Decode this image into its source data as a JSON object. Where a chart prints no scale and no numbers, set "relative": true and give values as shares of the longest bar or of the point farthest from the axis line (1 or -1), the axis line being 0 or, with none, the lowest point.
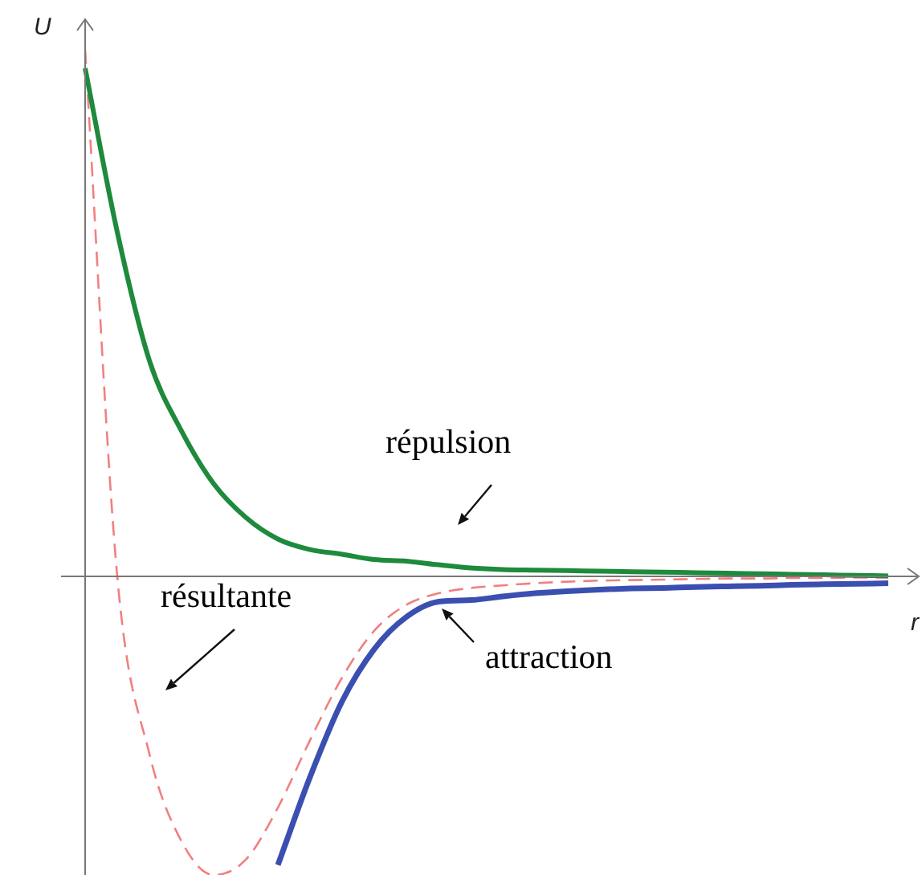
{
  "chart_data": {
    "type": "line",
    "relative": true,
    "xlabel": "r",
    "ylabel": "U",
    "legend": false,
    "marker": "none",
    "categories": [
      null,
      null,
      null,
      null,
      null,
      null,
      null,
      null,
      null,
      null,
      null,
      null,
      null,
      null,
      null,
      null,
      null,
      null,
      null,
      null,
      null,
      null,
      null,
      null,
      null,
      null
    ],
    "series": [
      {
        "name": "répulsion",
        "color": "#1e8a3c",
        "line_style": "solid",
        "values": [
          0.965,
          0.654,
          0.41,
          0.276,
          0.176,
          0.112,
          0.071,
          0.051,
          0.042,
          0.032,
          0.029,
          0.022,
          0.016,
          0.013,
          0.012,
          0.011,
          0.01,
          0.009,
          0.008,
          0.007,
          0.006,
          0.005,
          0.004,
          0.003,
          0.002,
          0.001
        ]
      },
      {
        "name": "attraction",
        "color": "#3b4fb0",
        "line_style": "solid",
        "values": [
          null,
          null,
          null,
          null,
          null,
          null,
          -0.548,
          -0.381,
          -0.237,
          -0.138,
          -0.077,
          -0.048,
          -0.045,
          -0.038,
          -0.032,
          -0.028,
          -0.025,
          -0.023,
          -0.022,
          -0.02,
          -0.019,
          -0.018,
          -0.016,
          -0.015,
          -0.014,
          -0.013
        ]
      },
      {
        "name": "résultante",
        "color": "#f08080",
        "line_style": "dashed",
        "values": [
          1.0,
          0,
          -0.337,
          -0.503,
          -0.567,
          -0.538,
          -0.439,
          -0.311,
          -0.192,
          -0.103,
          -0.054,
          -0.032,
          -0.022,
          -0.017,
          -0.013,
          -0.01,
          -0.008,
          -0.007,
          -0.006,
          -0.005,
          -0.004,
          -0.004,
          -0.003,
          -0.003,
          -0.002,
          -0.002
        ]
      }
    ]
  }
}
